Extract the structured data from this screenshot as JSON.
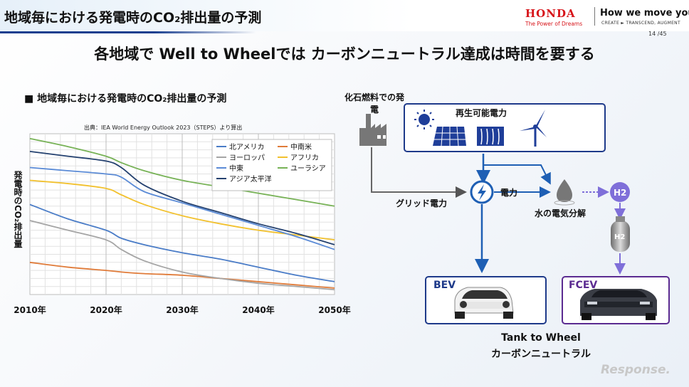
{
  "header": {
    "slide_title": "地域毎における発電時のCO₂排出量の予測",
    "brand_name": "HONDA",
    "brand_tagline": "The Power of Dreams",
    "slogan": "How we move you.",
    "slogan_sub": "CREATE ► TRANSCEND, AUGMENT",
    "page_number": "14 /45"
  },
  "headline": "各地域で Well to Wheelでは カーボンニュートラル達成は時間を要する",
  "chart_section": {
    "heading": "■ 地域毎における発電時のCO₂排出量の予測",
    "source": "出典：IEA World Energy Outlook 2023（STEPS）より算出",
    "ylabel": "発電時のCO₂排出量"
  },
  "chart_data": {
    "type": "line",
    "title": "",
    "xlabel": "",
    "ylabel": "発電時のCO₂排出量",
    "x": [
      2010,
      2015,
      2020,
      2022,
      2025,
      2030,
      2035,
      2040,
      2045,
      2050
    ],
    "x_ticks": [
      "2010年",
      "2020年",
      "2030年",
      "2040年",
      "2050年"
    ],
    "x_tick_values": [
      2010,
      2020,
      2030,
      2040,
      2050
    ],
    "xlim": [
      2010,
      2050
    ],
    "ylim": [
      0,
      100
    ],
    "grid": true,
    "legend_position": "top-right",
    "series": [
      {
        "name": "北アメリカ",
        "color": "#4a7cc7",
        "values": [
          56,
          47,
          40,
          35,
          31,
          26,
          22,
          17,
          12,
          8
        ]
      },
      {
        "name": "中南米",
        "color": "#e07b39",
        "values": [
          20,
          17,
          15,
          14,
          13,
          12,
          10,
          8,
          6,
          4
        ]
      },
      {
        "name": "ヨーロッパ",
        "color": "#a5a5a5",
        "values": [
          46,
          40,
          34,
          28,
          21,
          14,
          10,
          7,
          5,
          3
        ]
      },
      {
        "name": "アフリカ",
        "color": "#f2c12e",
        "values": [
          71,
          69,
          66,
          62,
          56,
          49,
          44,
          40,
          37,
          34
        ]
      },
      {
        "name": "中東",
        "color": "#5b8bd6",
        "values": [
          79,
          77,
          75,
          73,
          64,
          57,
          50,
          43,
          36,
          28
        ]
      },
      {
        "name": "ユーラシア",
        "color": "#77b256",
        "values": [
          97,
          92,
          86,
          82,
          77,
          71,
          67,
          63,
          59,
          55
        ]
      },
      {
        "name": "アジア太平洋",
        "color": "#24416f",
        "values": [
          89,
          86,
          83,
          79,
          68,
          58,
          51,
          44,
          38,
          31
        ]
      }
    ]
  },
  "diagram": {
    "fossil_label": "化石燃料での発電",
    "renewable_label": "再生可能電力",
    "grid_power_label": "グリッド電力",
    "power_label": "電力",
    "electrolysis_label": "水の電気分解",
    "h2_label": "H2",
    "bev_label": "BEV",
    "fcev_label": "FCEV",
    "ttw_line1": "Tank to Wheel",
    "ttw_line2": "カーボンニュートラル",
    "colors": {
      "blue": "#1e5fb4",
      "purple": "#5b2b91",
      "violet_arrow": "#7f6fd9",
      "gray_line": "#666666"
    }
  },
  "watermark": "Response."
}
